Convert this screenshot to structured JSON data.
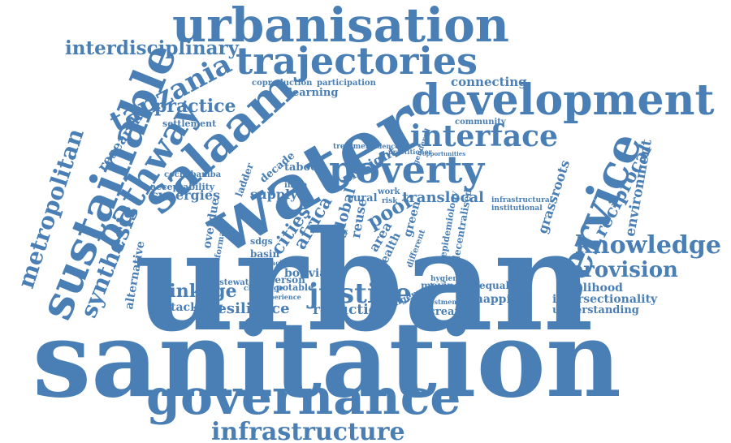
{
  "cloud": {
    "color": "#4a7fb5",
    "words": [
      "urbanisation",
      "interdisciplinary",
      "trajectories",
      "tanzania",
      "development",
      "sustainable",
      "metropolitan",
      "salaam",
      "practice",
      "pathway",
      "research",
      "settlement",
      "water",
      "interface",
      "poverty",
      "service",
      "urban",
      "sanitation",
      "governance",
      "infrastructure",
      "knowledge",
      "provision",
      "justice",
      "linkage",
      "synthesis",
      "alternative",
      "resilience",
      "tackling",
      "reduction",
      "reciprocal",
      "environment",
      "grassroots",
      "connecting",
      "learning",
      "coproduction",
      "participation",
      "community",
      "insight",
      "translocal",
      "rural",
      "poor",
      "supply",
      "synergies",
      "acceptability",
      "cochabamba",
      "taboo",
      "decade",
      "india",
      "work",
      "africa",
      "cities",
      "global",
      "reuse",
      "area",
      "health",
      "green",
      "bolivia",
      "basin",
      "sdgs",
      "ladder",
      "overdue",
      "informal",
      "wastewater",
      "person",
      "potable",
      "challenge",
      "experience",
      "moving",
      "equality",
      "mapping",
      "creating",
      "investment",
      "arrangement",
      "livelihood",
      "intersectionality",
      "understanding",
      "decentralised",
      "epidemiology",
      "different",
      "goal",
      "approach",
      "treatment",
      "practitioner",
      "infrastructural",
      "institutional",
      "hygiene",
      "risk",
      "evidence",
      "gendered",
      "opportunities",
      "acc"
    ]
  }
}
